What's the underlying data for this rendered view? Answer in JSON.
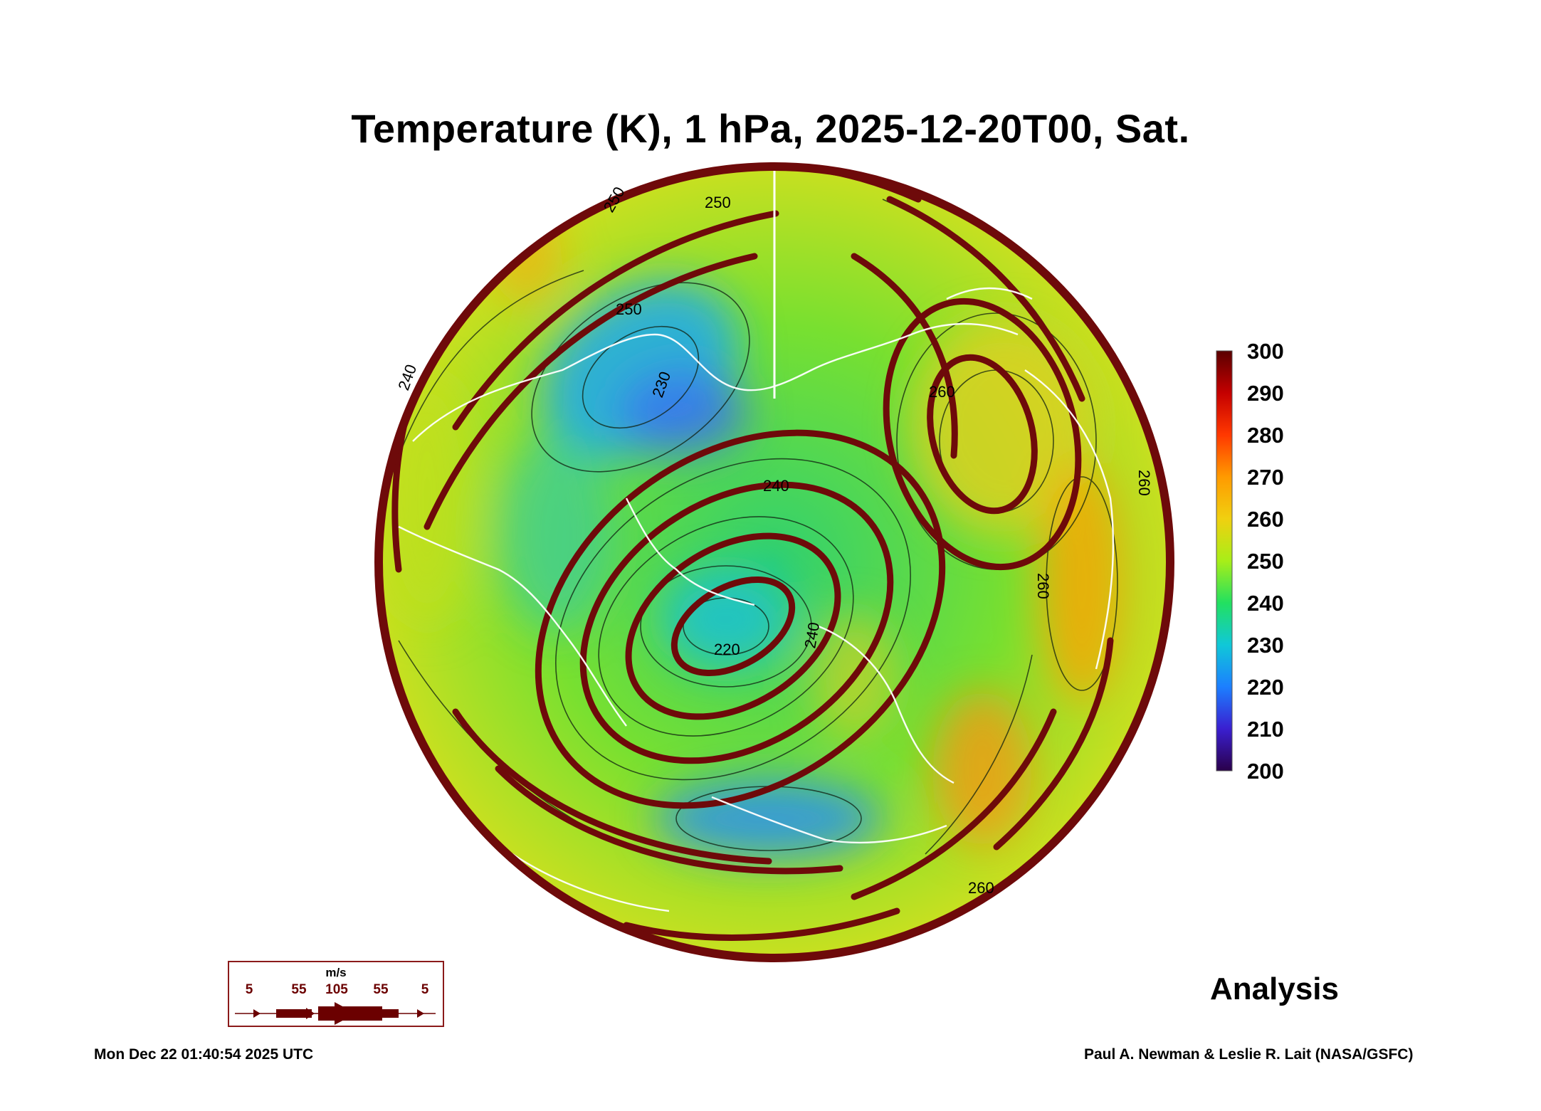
{
  "title": "Temperature (K), 1 hPa, 2025-12-20T00, Sat.",
  "colorbar": {
    "labels": [
      "300",
      "290",
      "280",
      "270",
      "260",
      "250",
      "240",
      "230",
      "220",
      "210",
      "200"
    ],
    "colors": [
      "#2a004a",
      "#3a1fd0",
      "#1c7fff",
      "#10c8d8",
      "#22e060",
      "#a8ee18",
      "#f0d010",
      "#ff9a00",
      "#ff3800",
      "#c40000",
      "#5a0000"
    ]
  },
  "contour_labels": [
    "250",
    "250",
    "230",
    "220",
    "240",
    "240",
    "260",
    "260",
    "260",
    "240",
    "250",
    "260"
  ],
  "wind_legend": {
    "unit": "m/s",
    "values": [
      "5",
      "55",
      "105",
      "55",
      "5"
    ],
    "color": "#6b0000"
  },
  "label": "Analysis",
  "timestamp": "Mon Dec 22 01:40:54 2025 UTC",
  "credit": "Paul A. Newman & Leslie R. Lait (NASA/GSFC)"
}
